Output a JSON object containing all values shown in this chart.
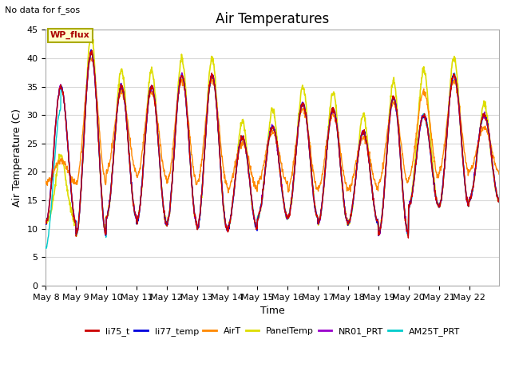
{
  "title": "Air Temperatures",
  "subtitle": "No data for f_sos",
  "xlabel": "Time",
  "ylabel": "Air Temperature (C)",
  "ylim": [
    0,
    45
  ],
  "yticks": [
    0,
    5,
    10,
    15,
    20,
    25,
    30,
    35,
    40,
    45
  ],
  "n_days": 15,
  "points_per_day": 96,
  "series_order": [
    "AM25T_PRT",
    "NR01_PRT",
    "PanelTemp",
    "AirT",
    "li77_temp",
    "li75_t"
  ],
  "series": {
    "li75_t": {
      "color": "#cc0000",
      "lw": 1.0,
      "zorder": 6
    },
    "li77_temp": {
      "color": "#0000dd",
      "lw": 1.0,
      "zorder": 5
    },
    "AirT": {
      "color": "#ff8800",
      "lw": 1.0,
      "zorder": 4
    },
    "PanelTemp": {
      "color": "#dddd00",
      "lw": 1.2,
      "zorder": 3
    },
    "NR01_PRT": {
      "color": "#9900cc",
      "lw": 1.0,
      "zorder": 5
    },
    "AM25T_PRT": {
      "color": "#00cccc",
      "lw": 1.0,
      "zorder": 4
    }
  },
  "annotation_text": "WP_flux",
  "bg_color": "#ffffff",
  "fig_bg_color": "#ffffff",
  "grid_color": "#d8d8d8",
  "title_fontsize": 12,
  "label_fontsize": 9,
  "tick_fontsize": 8,
  "day_peaks": [
    35,
    41,
    35,
    35,
    37,
    37,
    26,
    28,
    32,
    31,
    27,
    33,
    30,
    37,
    30
  ],
  "day_mins": [
    11,
    9,
    12,
    11,
    11,
    10,
    10,
    12,
    12,
    11,
    11,
    9,
    14,
    14,
    15
  ],
  "panel_peaks": [
    20,
    41,
    35,
    35,
    37,
    37,
    26,
    28,
    32,
    31,
    27,
    33,
    35,
    37,
    29
  ],
  "airt_peaks": [
    22,
    40,
    34,
    34,
    36,
    36,
    25,
    27,
    31,
    30,
    26,
    32,
    34,
    36,
    28
  ],
  "airt_mins": [
    18,
    18,
    20,
    19,
    18,
    18,
    17,
    18,
    17,
    17,
    17,
    18,
    19,
    20,
    20
  ]
}
